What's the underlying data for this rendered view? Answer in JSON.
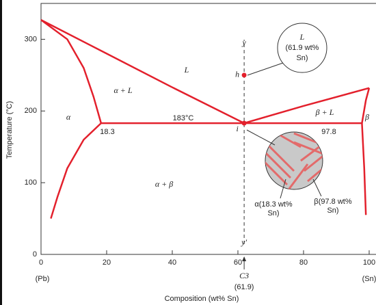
{
  "chart_data": {
    "type": "phase-diagram",
    "x_label": "Composition (wt% Sn)",
    "y_label": "Temperature (°C)",
    "xlim": [
      0,
      100
    ],
    "ylim": [
      0,
      350
    ],
    "xticks": [
      0,
      20,
      40,
      60,
      80,
      100
    ],
    "yticks": [
      0,
      100,
      200,
      300
    ],
    "color": "#e3202c",
    "curves": [
      {
        "x": [
          0,
          20,
          40,
          61.9
        ],
        "values": [
          327,
          280,
          233,
          183
        ]
      },
      {
        "x": [
          61.9,
          80,
          100
        ],
        "values": [
          183,
          207,
          232
        ]
      },
      {
        "x": [
          0,
          8,
          13,
          16,
          18.3
        ],
        "values": [
          327,
          300,
          260,
          220,
          183
        ]
      },
      {
        "x": [
          18.3,
          13,
          8,
          5,
          3
        ],
        "values": [
          183,
          160,
          120,
          80,
          50
        ]
      },
      {
        "x": [
          18.3,
          97.8
        ],
        "values": [
          183,
          183
        ]
      },
      {
        "x": [
          97.8,
          99,
          100
        ],
        "values": [
          183,
          215,
          232
        ]
      },
      {
        "x": [
          97.8,
          98.5,
          99
        ],
        "values": [
          183,
          120,
          55
        ]
      }
    ],
    "points": {
      "x": [
        61.9,
        61.9
      ],
      "values": [
        250,
        183
      ],
      "labels": [
        "h",
        "i"
      ]
    },
    "composition_line": {
      "x": 61.9,
      "ends": [
        "y",
        "y'"
      ],
      "label": "C3",
      "value_label": "(61.9)"
    },
    "annotations": [
      "L",
      "α + L",
      "α",
      "183°C",
      "18.3",
      "97.8",
      "β + L",
      "β",
      "α + β",
      "(Pb)",
      "(Sn)"
    ],
    "liquid_bubble": [
      "L",
      "(61.9 wt%",
      "Sn)"
    ],
    "alpha_note": [
      "α(18.3 wt%",
      "Sn)"
    ],
    "beta_note": [
      "β(97.8 wt%",
      "Sn)"
    ]
  }
}
